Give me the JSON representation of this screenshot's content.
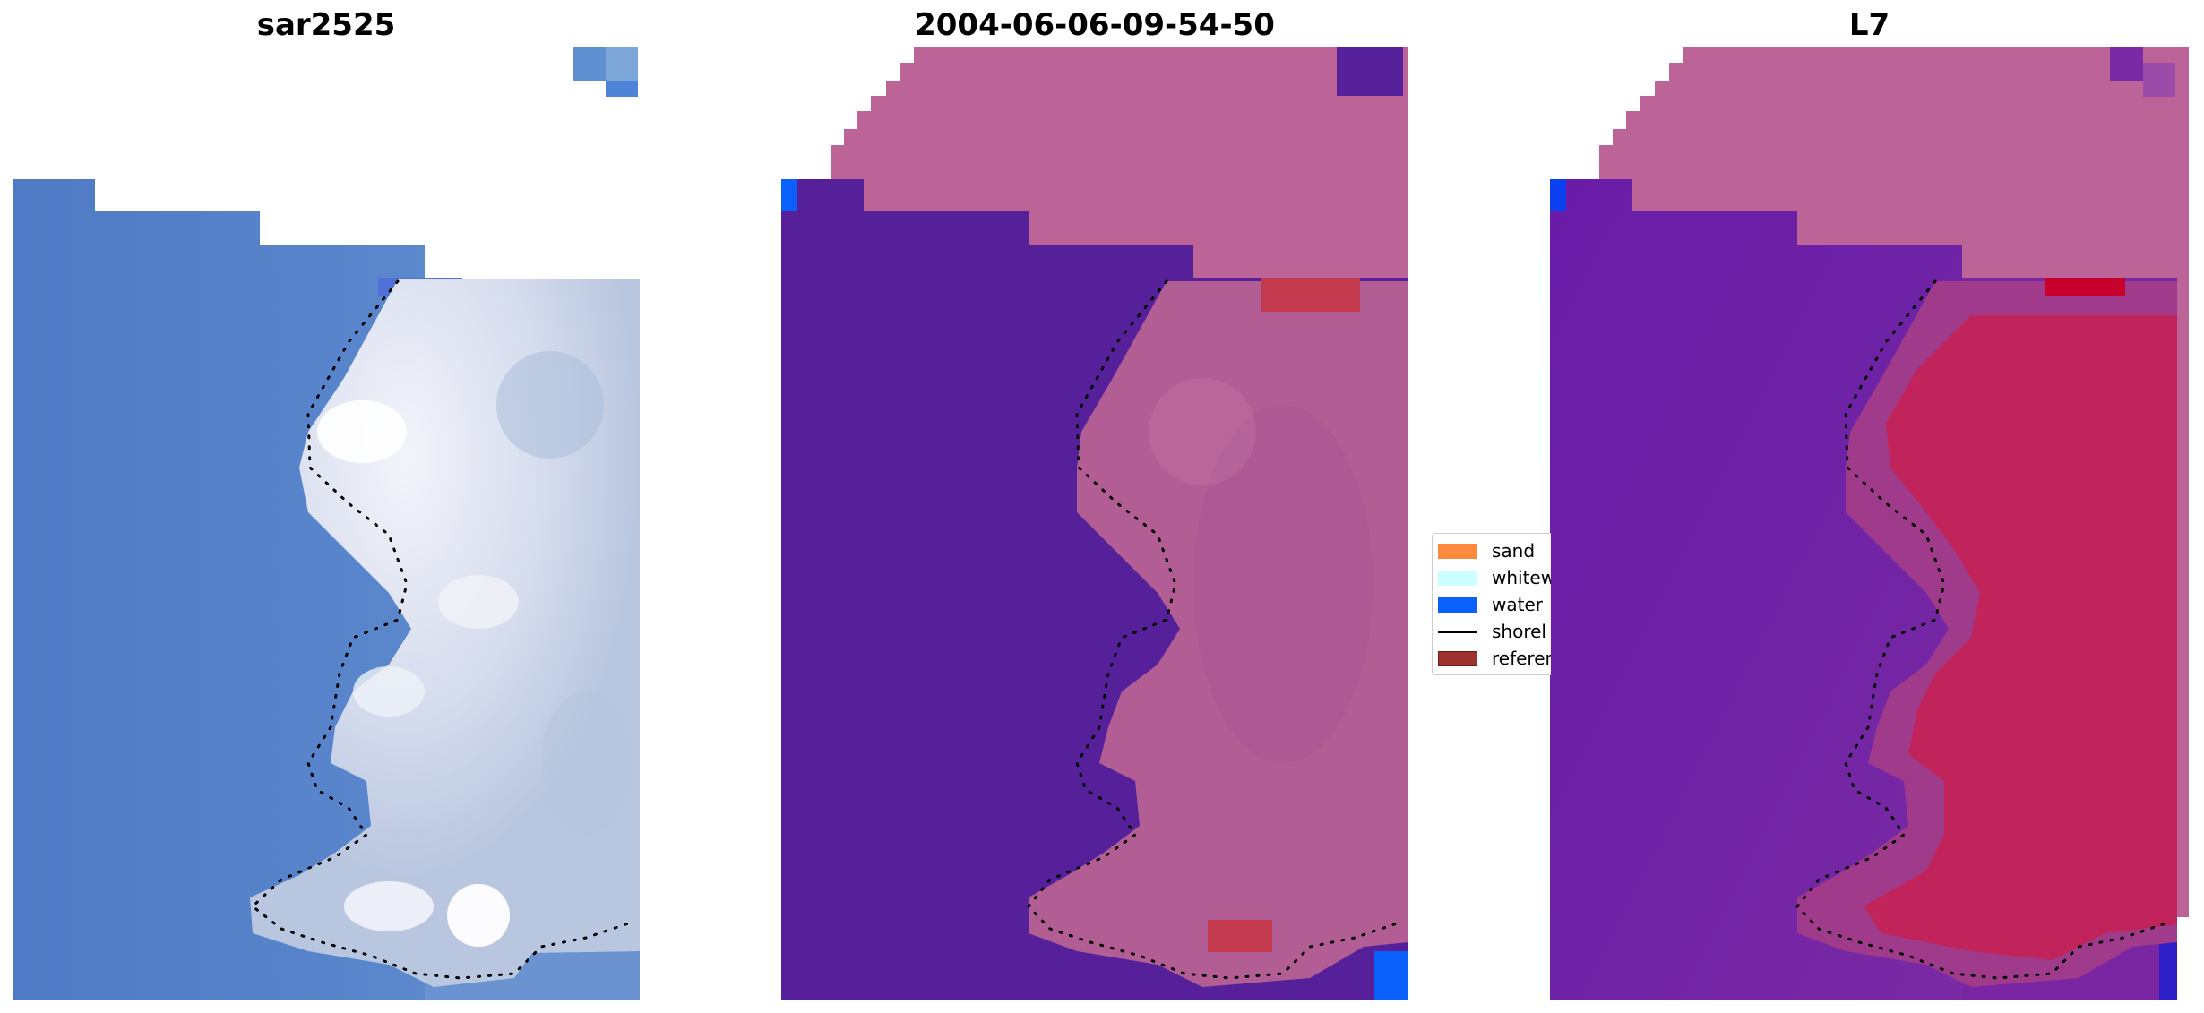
{
  "titles": {
    "left": "sar2525",
    "middle": "2004-06-06-09-54-50",
    "right": "L7"
  },
  "legend": {
    "items": [
      {
        "label": "sand",
        "color": "#fd8a3c",
        "kind": "patch"
      },
      {
        "label": "whitew",
        "color": "#ccffff",
        "kind": "patch"
      },
      {
        "label": "water",
        "color": "#0a60fb",
        "kind": "patch"
      },
      {
        "label": "shorel",
        "color": "#000000",
        "kind": "line"
      },
      {
        "label": "referen",
        "color": "#9f3131",
        "kind": "patch"
      }
    ]
  },
  "colors": {
    "rgb_water": "#5a84cc",
    "rgb_foam": "#dde4f0",
    "classified_water_purple": "#55209a",
    "classified_land_pink": "#bc6497",
    "classified_water_blue": "#0a60fb",
    "classified_reference": "#c33a4e",
    "mndwi_water": "#6b1aa4",
    "mndwi_land": "#c0245a",
    "mndwi_pink": "#bc6497",
    "shoreline": "#000000"
  }
}
